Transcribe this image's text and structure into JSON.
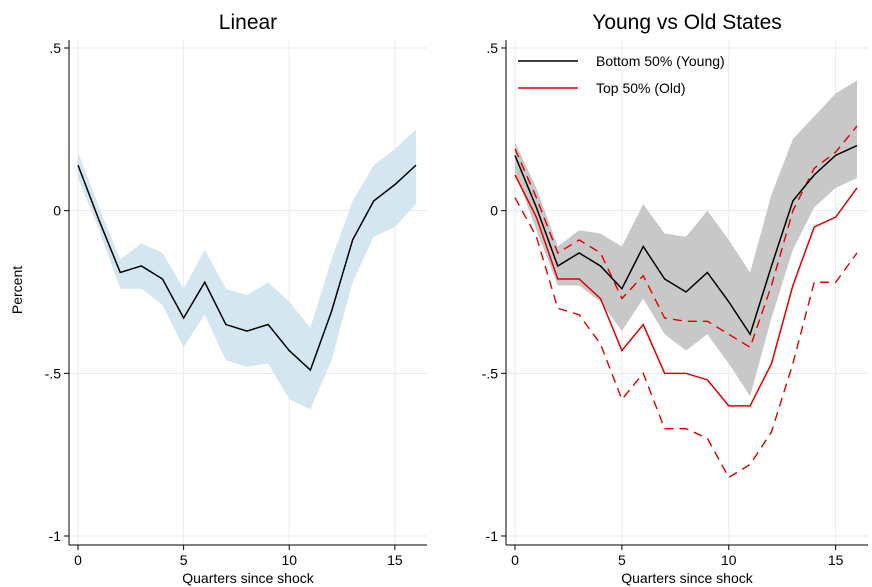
{
  "chart_data": [
    {
      "type": "line",
      "title": "Linear",
      "xlabel": "Quarters since shock",
      "ylabel": "Percent",
      "xlim": [
        0,
        16
      ],
      "ylim": [
        -1,
        0.5
      ],
      "xticks": [
        0,
        5,
        10,
        15
      ],
      "xtick_labels": [
        "0",
        "5",
        "10",
        "15"
      ],
      "yticks": [
        0.5,
        0,
        -0.5,
        -1
      ],
      "ytick_labels": [
        ".5",
        "0",
        "-.5",
        "-1"
      ],
      "grid": true,
      "legend": "none",
      "x": [
        0,
        1,
        2,
        3,
        4,
        5,
        6,
        7,
        8,
        9,
        10,
        11,
        12,
        13,
        14,
        15,
        16
      ],
      "series": [
        {
          "color": "#000000",
          "values": [
            0.14,
            -0.03,
            -0.19,
            -0.17,
            -0.21,
            -0.33,
            -0.22,
            -0.35,
            -0.37,
            -0.35,
            -0.43,
            -0.49,
            -0.31,
            -0.09,
            0.03,
            0.08,
            0.14
          ],
          "band_lower": [
            0.1,
            -0.06,
            -0.24,
            -0.24,
            -0.29,
            -0.42,
            -0.32,
            -0.46,
            -0.48,
            -0.47,
            -0.58,
            -0.61,
            -0.46,
            -0.22,
            -0.08,
            -0.05,
            0.02
          ],
          "band_upper": [
            0.18,
            0.01,
            -0.15,
            -0.1,
            -0.13,
            -0.24,
            -0.12,
            -0.24,
            -0.26,
            -0.22,
            -0.28,
            -0.36,
            -0.15,
            0.03,
            0.14,
            0.19,
            0.25
          ],
          "band_color": "#d4e6f0"
        }
      ]
    },
    {
      "type": "line",
      "title": "Young vs Old States",
      "xlabel": "Quarters since shock",
      "ylabel": "",
      "xlim": [
        0,
        16
      ],
      "ylim": [
        -1,
        0.5
      ],
      "xticks": [
        0,
        5,
        10,
        15
      ],
      "xtick_labels": [
        "0",
        "5",
        "10",
        "15"
      ],
      "yticks": [
        0.5,
        0,
        -0.5,
        -1
      ],
      "ytick_labels": [
        ".5",
        "0",
        "-.5",
        "-1"
      ],
      "grid": true,
      "legend": "top-left",
      "x": [
        0,
        1,
        2,
        3,
        4,
        5,
        6,
        7,
        8,
        9,
        10,
        11,
        12,
        13,
        14,
        15,
        16
      ],
      "series": [
        {
          "name": "Bottom 50% (Young)",
          "color": "#000000",
          "values": [
            0.17,
            0.01,
            -0.17,
            -0.13,
            -0.17,
            -0.24,
            -0.11,
            -0.21,
            -0.25,
            -0.19,
            -0.28,
            -0.38,
            -0.17,
            0.03,
            0.11,
            0.17,
            0.2
          ],
          "band_lower": [
            0.12,
            -0.06,
            -0.23,
            -0.23,
            -0.28,
            -0.37,
            -0.27,
            -0.38,
            -0.43,
            -0.38,
            -0.47,
            -0.57,
            -0.33,
            -0.12,
            0.01,
            0.07,
            0.1
          ],
          "band_upper": [
            0.21,
            0.07,
            -0.11,
            -0.06,
            -0.07,
            -0.11,
            0.02,
            -0.07,
            -0.08,
            0.0,
            -0.09,
            -0.19,
            0.05,
            0.22,
            0.29,
            0.36,
            0.4
          ],
          "band_color": "#c8c8c8"
        },
        {
          "name": "Top 50% (Old)",
          "color": "#e00000",
          "values": [
            0.11,
            -0.02,
            -0.21,
            -0.21,
            -0.27,
            -0.43,
            -0.35,
            -0.5,
            -0.5,
            -0.52,
            -0.6,
            -0.6,
            -0.47,
            -0.23,
            -0.05,
            -0.02,
            0.07
          ],
          "ci_lower": [
            0.04,
            -0.08,
            -0.3,
            -0.32,
            -0.41,
            -0.58,
            -0.5,
            -0.67,
            -0.67,
            -0.7,
            -0.82,
            -0.78,
            -0.68,
            -0.47,
            -0.22,
            -0.22,
            -0.13
          ],
          "ci_upper": [
            0.19,
            0.04,
            -0.13,
            -0.09,
            -0.13,
            -0.27,
            -0.2,
            -0.33,
            -0.34,
            -0.34,
            -0.38,
            -0.42,
            -0.23,
            0.0,
            0.13,
            0.18,
            0.26
          ]
        }
      ]
    }
  ]
}
